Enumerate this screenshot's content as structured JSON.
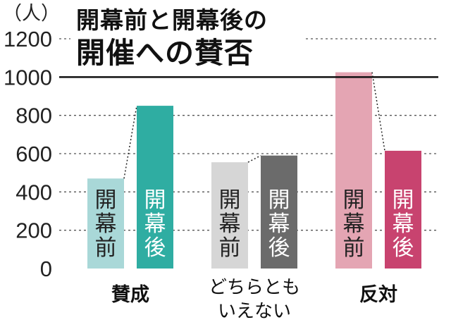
{
  "chart_data": {
    "type": "bar",
    "title": "開幕前と開幕後の",
    "subtitle": "開催への賛否",
    "unit": "（人）",
    "yticks": [
      "1200",
      "1000",
      "800",
      "600",
      "400",
      "200",
      "0"
    ],
    "ylim": [
      0,
      1200
    ],
    "reference_line": 1000,
    "grid": "dotted",
    "categories": [
      {
        "label": "賛成",
        "lines": [
          "賛成"
        ]
      },
      {
        "label": "どちらともいえない",
        "lines": [
          "どちらとも",
          "いえない"
        ]
      },
      {
        "label": "反対",
        "lines": [
          "反対"
        ]
      }
    ],
    "series": [
      {
        "name": "開幕前",
        "name_chars": [
          "開",
          "幕",
          "前"
        ],
        "values": [
          470,
          555,
          1025
        ]
      },
      {
        "name": "開幕後",
        "name_chars": [
          "開",
          "幕",
          "後"
        ],
        "values": [
          850,
          590,
          615
        ]
      }
    ],
    "colors": {
      "bars": [
        [
          "#a9d8d8",
          "#2fada2"
        ],
        [
          "#d6d6d6",
          "#6b6b6b"
        ],
        [
          "#e4a5b3",
          "#c8436f"
        ]
      ],
      "label_text": [
        [
          "#222222",
          "#ffffff"
        ],
        [
          "#222222",
          "#ffffff"
        ],
        [
          "#222222",
          "#ffffff"
        ]
      ],
      "grid": "#555555",
      "reference": "#111111"
    }
  }
}
